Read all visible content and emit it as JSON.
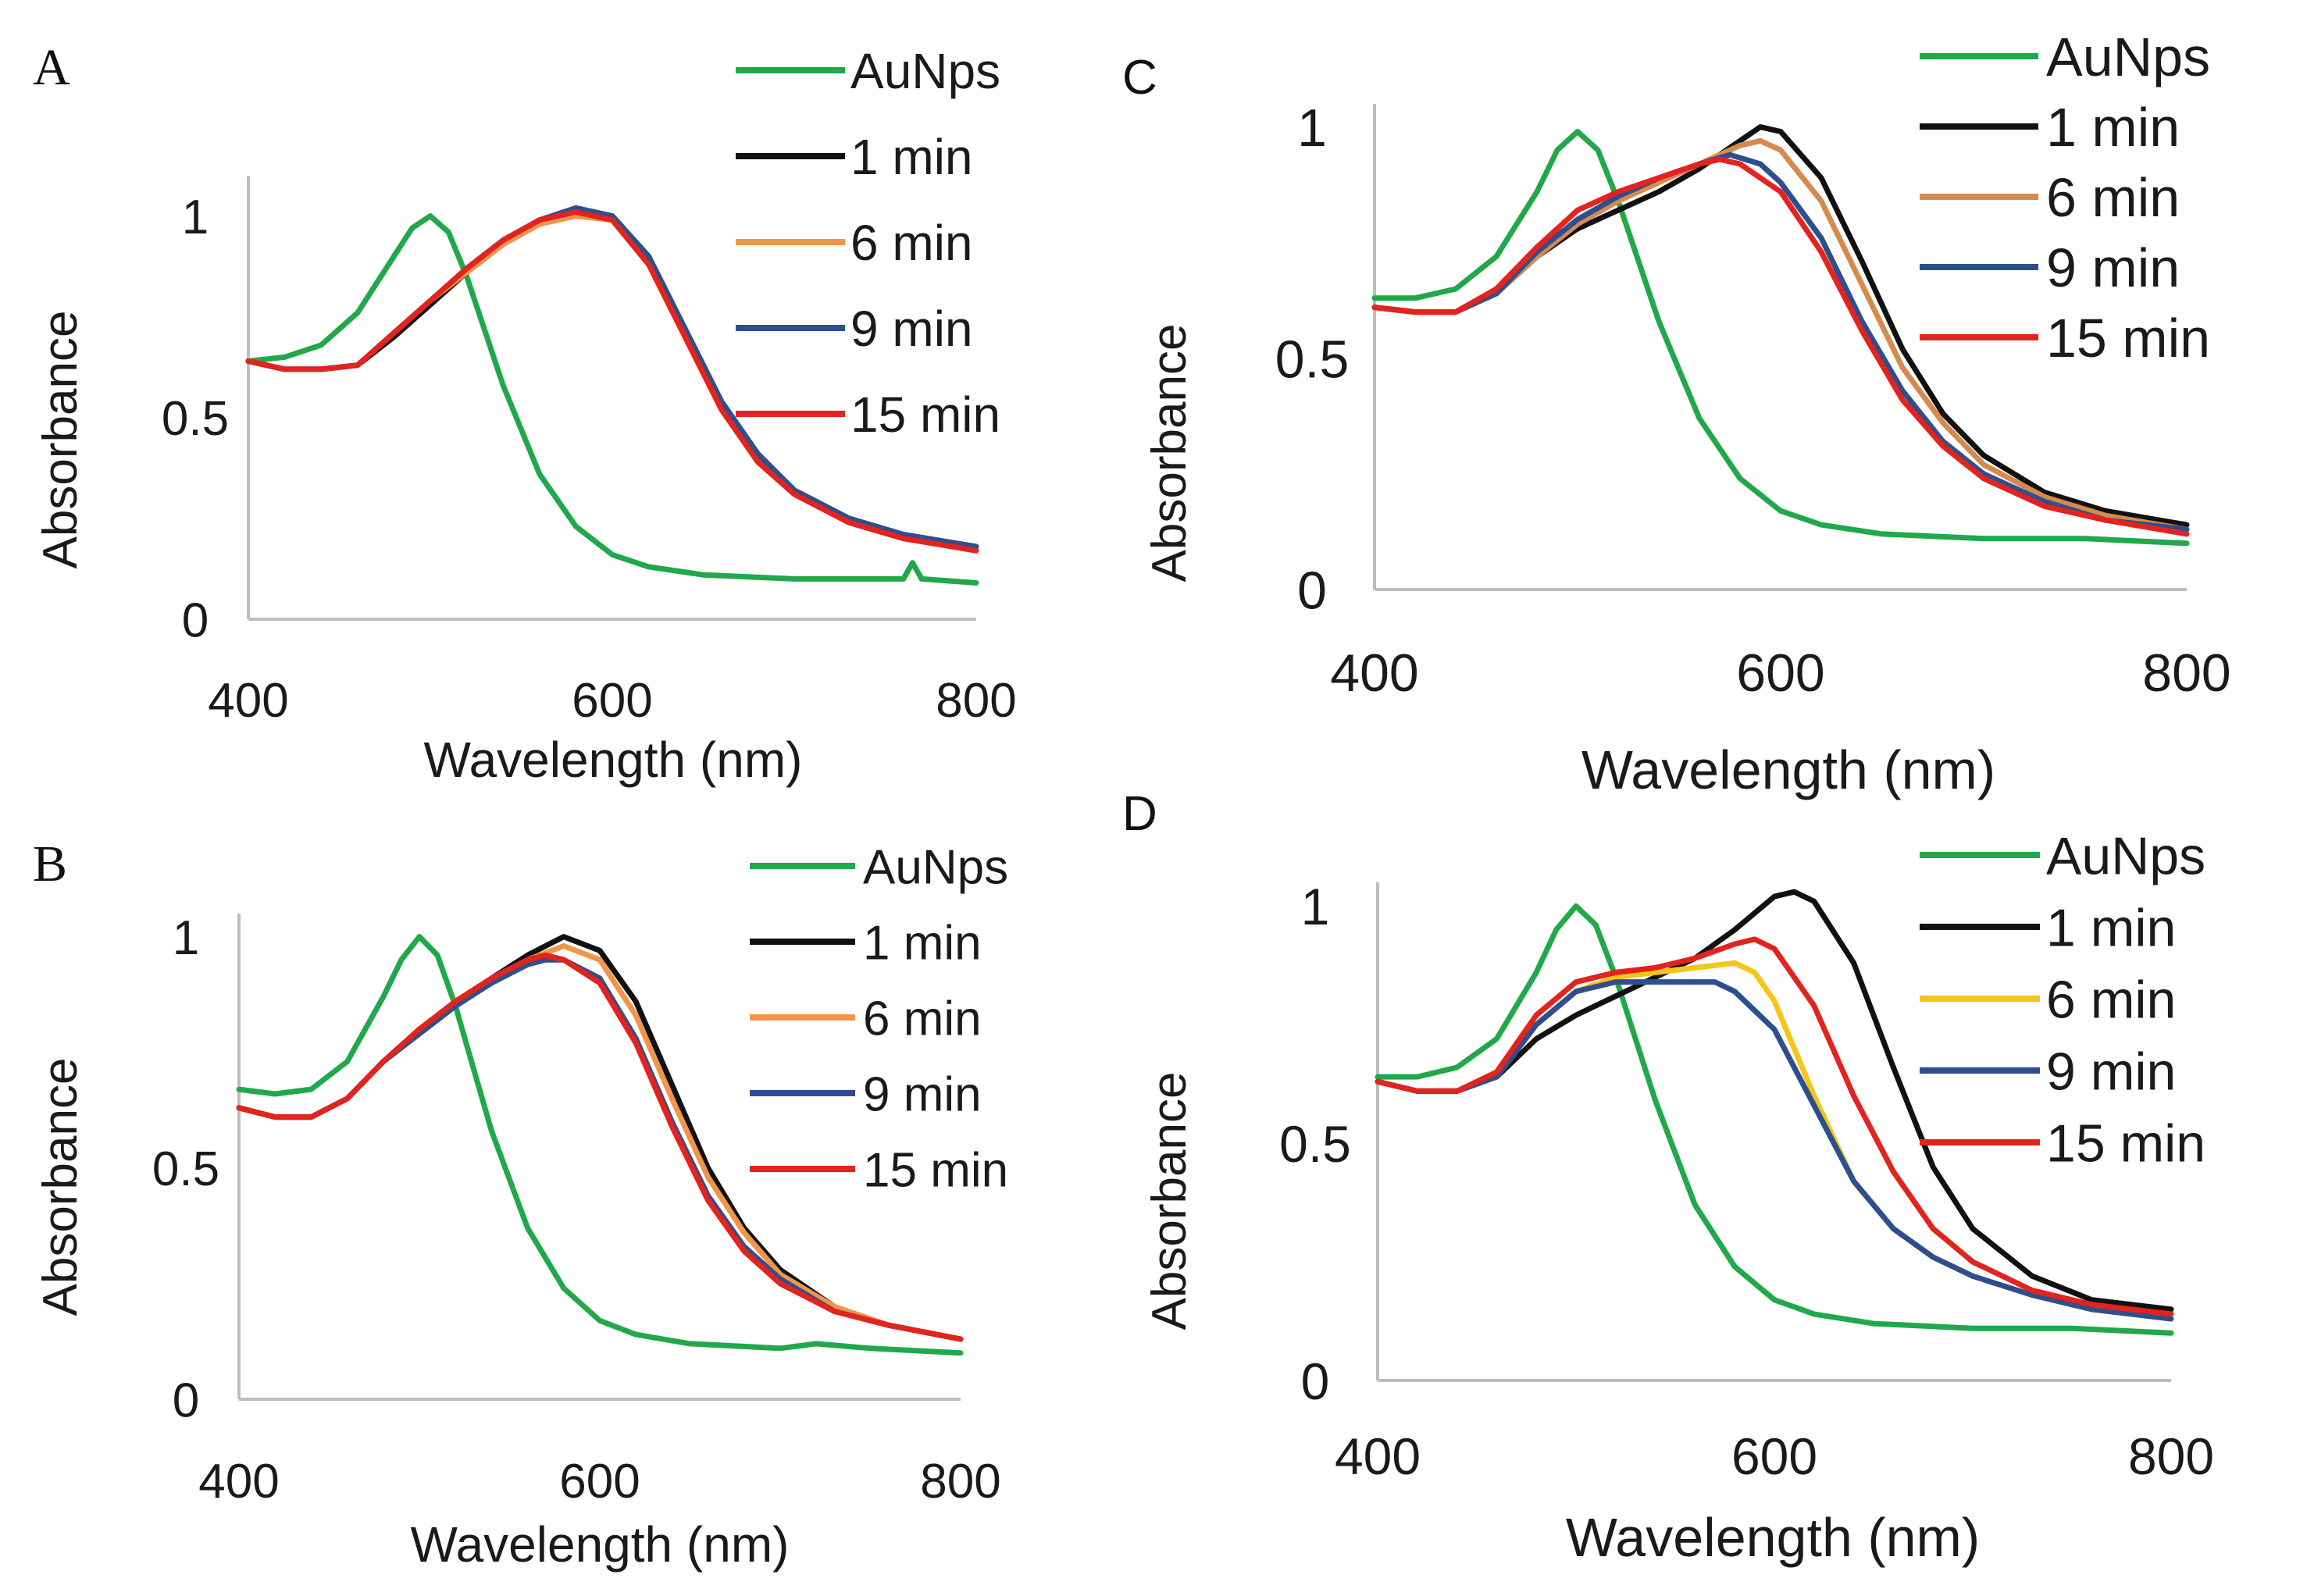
{
  "chart_data": [
    {
      "panel": "A",
      "type": "line",
      "xlabel": "Wavelength (nm)",
      "ylabel": "Absorbance",
      "xlim": [
        400,
        800
      ],
      "ylim": [
        0,
        1.1
      ],
      "xticks": [
        "400",
        "600",
        "800"
      ],
      "yticks": [
        "0",
        "0.5",
        "1"
      ],
      "legend_position": "top-right",
      "series": [
        {
          "name": "AuNps",
          "color": "#21a84a",
          "x": [
            400,
            420,
            440,
            460,
            480,
            490,
            500,
            510,
            520,
            540,
            560,
            580,
            600,
            620,
            650,
            700,
            750,
            760,
            765,
            770,
            800
          ],
          "y": [
            0.64,
            0.65,
            0.68,
            0.76,
            0.9,
            0.97,
            1.0,
            0.96,
            0.85,
            0.58,
            0.36,
            0.23,
            0.16,
            0.13,
            0.11,
            0.1,
            0.1,
            0.1,
            0.14,
            0.1,
            0.09
          ]
        },
        {
          "name": "1 min",
          "color": "#111111",
          "x": [
            400,
            420,
            440,
            460,
            480,
            500,
            520,
            540,
            560,
            580,
            600,
            620,
            640,
            660,
            680,
            700,
            730,
            760,
            800
          ],
          "y": [
            0.64,
            0.62,
            0.62,
            0.63,
            0.7,
            0.78,
            0.86,
            0.93,
            0.98,
            1.01,
            1.0,
            0.9,
            0.72,
            0.54,
            0.41,
            0.32,
            0.25,
            0.21,
            0.18
          ]
        },
        {
          "name": "6 min",
          "color": "#f0964a",
          "x": [
            400,
            420,
            440,
            460,
            480,
            500,
            520,
            540,
            560,
            580,
            600,
            620,
            640,
            660,
            680,
            700,
            730,
            760,
            800
          ],
          "y": [
            0.64,
            0.62,
            0.62,
            0.63,
            0.71,
            0.79,
            0.86,
            0.93,
            0.98,
            1.0,
            0.99,
            0.88,
            0.7,
            0.52,
            0.39,
            0.31,
            0.24,
            0.2,
            0.17
          ]
        },
        {
          "name": "9 min",
          "color": "#2e4f8e",
          "x": [
            400,
            420,
            440,
            460,
            480,
            500,
            520,
            540,
            560,
            580,
            600,
            620,
            640,
            660,
            680,
            700,
            730,
            760,
            800
          ],
          "y": [
            0.64,
            0.62,
            0.62,
            0.63,
            0.71,
            0.79,
            0.87,
            0.94,
            0.99,
            1.02,
            1.0,
            0.9,
            0.72,
            0.54,
            0.41,
            0.32,
            0.25,
            0.21,
            0.18
          ]
        },
        {
          "name": "15 min",
          "color": "#e3231e",
          "x": [
            400,
            420,
            440,
            460,
            480,
            500,
            520,
            540,
            560,
            580,
            600,
            620,
            640,
            660,
            680,
            700,
            730,
            760,
            800
          ],
          "y": [
            0.64,
            0.62,
            0.62,
            0.63,
            0.71,
            0.79,
            0.87,
            0.94,
            0.99,
            1.01,
            0.99,
            0.88,
            0.7,
            0.52,
            0.39,
            0.31,
            0.24,
            0.2,
            0.17
          ]
        }
      ]
    },
    {
      "panel": "B",
      "type": "line",
      "xlabel": "Wavelength (nm)",
      "ylabel": "Absorbance",
      "xlim": [
        400,
        800
      ],
      "ylim": [
        0,
        1.05
      ],
      "xticks": [
        "400",
        "600",
        "800"
      ],
      "yticks": [
        "0",
        "0.5",
        "1"
      ],
      "legend_position": "top-right",
      "series": [
        {
          "name": "AuNps",
          "color": "#21a84a",
          "x": [
            400,
            420,
            440,
            460,
            480,
            490,
            500,
            510,
            520,
            540,
            560,
            580,
            600,
            620,
            650,
            700,
            720,
            750,
            800
          ],
          "y": [
            0.67,
            0.66,
            0.67,
            0.73,
            0.87,
            0.95,
            1.0,
            0.96,
            0.85,
            0.58,
            0.37,
            0.24,
            0.17,
            0.14,
            0.12,
            0.11,
            0.12,
            0.11,
            0.1
          ]
        },
        {
          "name": "1 min",
          "color": "#111111",
          "x": [
            400,
            420,
            440,
            460,
            480,
            500,
            520,
            540,
            560,
            580,
            600,
            620,
            640,
            660,
            680,
            700,
            730,
            760,
            800
          ],
          "y": [
            0.63,
            0.61,
            0.61,
            0.65,
            0.73,
            0.8,
            0.86,
            0.91,
            0.96,
            1.0,
            0.97,
            0.86,
            0.68,
            0.5,
            0.37,
            0.28,
            0.2,
            0.16,
            0.13
          ]
        },
        {
          "name": "6 min",
          "color": "#f0964a",
          "x": [
            400,
            420,
            440,
            460,
            480,
            500,
            520,
            540,
            560,
            580,
            600,
            620,
            640,
            660,
            680,
            700,
            730,
            760,
            800
          ],
          "y": [
            0.63,
            0.61,
            0.61,
            0.65,
            0.73,
            0.8,
            0.86,
            0.91,
            0.95,
            0.98,
            0.95,
            0.83,
            0.65,
            0.48,
            0.36,
            0.27,
            0.2,
            0.16,
            0.13
          ]
        },
        {
          "name": "9 min",
          "color": "#2e4f8e",
          "x": [
            400,
            420,
            440,
            460,
            480,
            500,
            520,
            540,
            560,
            570,
            580,
            600,
            620,
            640,
            660,
            680,
            700,
            730,
            760,
            800
          ],
          "y": [
            0.63,
            0.61,
            0.61,
            0.65,
            0.73,
            0.79,
            0.85,
            0.9,
            0.94,
            0.95,
            0.95,
            0.91,
            0.78,
            0.6,
            0.44,
            0.33,
            0.26,
            0.19,
            0.16,
            0.13
          ]
        },
        {
          "name": "15 min",
          "color": "#e3231e",
          "x": [
            400,
            420,
            440,
            460,
            480,
            500,
            520,
            540,
            560,
            570,
            580,
            600,
            620,
            640,
            660,
            680,
            700,
            730,
            760,
            800
          ],
          "y": [
            0.63,
            0.61,
            0.61,
            0.65,
            0.73,
            0.8,
            0.86,
            0.91,
            0.95,
            0.96,
            0.95,
            0.9,
            0.77,
            0.59,
            0.43,
            0.32,
            0.25,
            0.19,
            0.16,
            0.13
          ]
        }
      ]
    },
    {
      "panel": "C",
      "type": "line",
      "xlabel": "Wavelength (nm)",
      "ylabel": "Absorbance",
      "xlim": [
        400,
        800
      ],
      "ylim": [
        0,
        1.05
      ],
      "xticks": [
        "400",
        "600",
        "800"
      ],
      "yticks": [
        "0",
        "0.5",
        "1"
      ],
      "legend_position": "top-right",
      "series": [
        {
          "name": "AuNps",
          "color": "#21a84a",
          "x": [
            400,
            420,
            440,
            460,
            480,
            490,
            500,
            510,
            520,
            540,
            560,
            580,
            600,
            620,
            650,
            700,
            720,
            750,
            800
          ],
          "y": [
            0.63,
            0.63,
            0.65,
            0.72,
            0.86,
            0.95,
            0.99,
            0.95,
            0.84,
            0.58,
            0.37,
            0.24,
            0.17,
            0.14,
            0.12,
            0.11,
            0.11,
            0.11,
            0.1
          ]
        },
        {
          "name": "1 min",
          "color": "#111111",
          "x": [
            400,
            420,
            440,
            460,
            480,
            500,
            520,
            540,
            560,
            580,
            590,
            600,
            620,
            640,
            660,
            680,
            700,
            730,
            760,
            800
          ],
          "y": [
            0.61,
            0.6,
            0.6,
            0.64,
            0.72,
            0.78,
            0.82,
            0.86,
            0.91,
            0.97,
            1.0,
            0.99,
            0.89,
            0.71,
            0.52,
            0.38,
            0.29,
            0.21,
            0.17,
            0.14
          ]
        },
        {
          "name": "6 min",
          "color": "#d68a4e",
          "x": [
            400,
            420,
            440,
            460,
            480,
            500,
            520,
            540,
            560,
            580,
            590,
            600,
            620,
            640,
            660,
            680,
            700,
            730,
            760,
            800
          ],
          "y": [
            0.61,
            0.6,
            0.6,
            0.64,
            0.72,
            0.79,
            0.84,
            0.88,
            0.92,
            0.96,
            0.97,
            0.95,
            0.84,
            0.66,
            0.48,
            0.36,
            0.27,
            0.2,
            0.16,
            0.13
          ]
        },
        {
          "name": "9 min",
          "color": "#2e4f8e",
          "x": [
            400,
            420,
            440,
            460,
            480,
            500,
            520,
            540,
            560,
            575,
            590,
            600,
            620,
            640,
            660,
            680,
            700,
            730,
            760,
            800
          ],
          "y": [
            0.61,
            0.6,
            0.6,
            0.64,
            0.73,
            0.8,
            0.85,
            0.89,
            0.92,
            0.94,
            0.92,
            0.88,
            0.76,
            0.58,
            0.43,
            0.32,
            0.25,
            0.19,
            0.15,
            0.13
          ]
        },
        {
          "name": "15 min",
          "color": "#e3231e",
          "x": [
            400,
            420,
            440,
            460,
            480,
            500,
            520,
            540,
            560,
            570,
            580,
            600,
            620,
            640,
            660,
            680,
            700,
            730,
            760,
            800
          ],
          "y": [
            0.61,
            0.6,
            0.6,
            0.65,
            0.74,
            0.82,
            0.86,
            0.89,
            0.92,
            0.93,
            0.92,
            0.86,
            0.73,
            0.56,
            0.41,
            0.31,
            0.24,
            0.18,
            0.15,
            0.12
          ]
        }
      ]
    },
    {
      "panel": "D",
      "type": "line",
      "xlabel": "Wavelength (nm)",
      "ylabel": "Absorbance",
      "xlim": [
        400,
        800
      ],
      "ylim": [
        0,
        1.05
      ],
      "xticks": [
        "400",
        "600",
        "800"
      ],
      "yticks": [
        "0",
        "0.5",
        "1"
      ],
      "legend_position": "top-right",
      "series": [
        {
          "name": "AuNps",
          "color": "#21a84a",
          "x": [
            400,
            420,
            440,
            460,
            480,
            490,
            500,
            510,
            520,
            540,
            560,
            580,
            600,
            620,
            650,
            700,
            720,
            750,
            800
          ],
          "y": [
            0.64,
            0.64,
            0.66,
            0.72,
            0.86,
            0.95,
            1.0,
            0.96,
            0.85,
            0.59,
            0.37,
            0.24,
            0.17,
            0.14,
            0.12,
            0.11,
            0.11,
            0.11,
            0.1
          ]
        },
        {
          "name": "1 min",
          "color": "#111111",
          "x": [
            400,
            420,
            440,
            460,
            480,
            500,
            520,
            540,
            560,
            580,
            600,
            610,
            620,
            640,
            660,
            680,
            700,
            730,
            760,
            800
          ],
          "y": [
            0.63,
            0.61,
            0.61,
            0.64,
            0.72,
            0.77,
            0.81,
            0.85,
            0.89,
            0.95,
            1.02,
            1.03,
            1.01,
            0.88,
            0.66,
            0.45,
            0.32,
            0.22,
            0.17,
            0.15
          ]
        },
        {
          "name": "6 min",
          "color": "#f5c518",
          "x": [
            400,
            420,
            440,
            460,
            480,
            500,
            520,
            540,
            560,
            580,
            590,
            600,
            620,
            640,
            660,
            680,
            700,
            730,
            760,
            800
          ],
          "y": [
            0.63,
            0.61,
            0.61,
            0.64,
            0.75,
            0.82,
            0.85,
            0.86,
            0.87,
            0.88,
            0.86,
            0.8,
            0.6,
            0.42,
            0.32,
            0.26,
            0.22,
            0.18,
            0.15,
            0.13
          ]
        },
        {
          "name": "9 min",
          "color": "#2e4f8e",
          "x": [
            400,
            420,
            440,
            460,
            480,
            500,
            520,
            540,
            560,
            570,
            580,
            600,
            620,
            640,
            660,
            680,
            700,
            730,
            760,
            800
          ],
          "y": [
            0.63,
            0.61,
            0.61,
            0.64,
            0.75,
            0.82,
            0.84,
            0.84,
            0.84,
            0.84,
            0.82,
            0.74,
            0.58,
            0.42,
            0.32,
            0.26,
            0.22,
            0.18,
            0.15,
            0.13
          ]
        },
        {
          "name": "15 min",
          "color": "#e3231e",
          "x": [
            400,
            420,
            440,
            460,
            480,
            500,
            520,
            540,
            560,
            580,
            590,
            600,
            620,
            640,
            660,
            680,
            700,
            730,
            760,
            800
          ],
          "y": [
            0.63,
            0.61,
            0.61,
            0.65,
            0.77,
            0.84,
            0.86,
            0.87,
            0.89,
            0.92,
            0.93,
            0.91,
            0.79,
            0.6,
            0.44,
            0.32,
            0.25,
            0.19,
            0.16,
            0.14
          ]
        }
      ]
    }
  ]
}
